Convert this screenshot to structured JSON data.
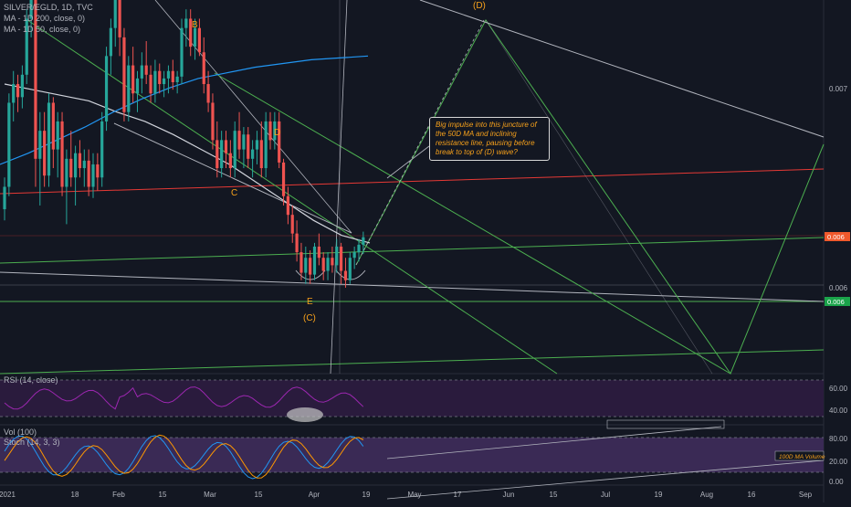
{
  "header": {
    "symbol_line": "SILVER/EGLD, 1D, TVC",
    "ma1": "MA - 1D 200, close, 0)",
    "ma2": "MA - 1D 50, close, 0)"
  },
  "price_panel": {
    "labels": {
      "B": "B",
      "C": "C",
      "D": "D",
      "E": "E",
      "C_paren": "(C)",
      "D_paren": "(D)"
    },
    "annotation": "Big impulse into this juncture of the 50D MA and inclining resistance line, pausing before break to top of (D) wave?",
    "axis_labels": [
      "0.007",
      "0.006"
    ],
    "price_tags": [
      {
        "text": "0.006",
        "color": "#f0592c"
      },
      {
        "text": "0.006",
        "color": "#1aa34a"
      }
    ]
  },
  "rsi_panel": {
    "label": "RSI (14, close)",
    "axis": [
      "60.00",
      "40.00"
    ]
  },
  "stoch_panel": {
    "label_vol": "Vol (100)",
    "label_stoch": "Stoch (14, 3, 3)",
    "axis": [
      "80.00",
      "20.00",
      "0.00"
    ],
    "tag": "100D MA Volume"
  },
  "x_axis": {
    "ticks": [
      "2021",
      "18",
      "Feb",
      "15",
      "Mar",
      "15",
      "Apr",
      "19",
      "May",
      "17",
      "Jun",
      "15",
      "Jul",
      "19",
      "Aug",
      "16",
      "Sep"
    ]
  },
  "colors": {
    "background": "#131722",
    "bull": "#26a69a",
    "bear": "#ef5350",
    "ma200": "#2196f3",
    "ma50": "#ffffff",
    "trend_green": "#4caf50",
    "trend_red": "#e53935",
    "label_orange": "#f7a11b",
    "rsi": "#9c27b0",
    "stoch_k": "#2196f3",
    "stoch_d": "#ff9800",
    "band_fill": "#2a1b3d"
  },
  "chart_data": {
    "type": "candlestick",
    "title": "SILVER/EGLD, 1D, TVC",
    "x_range": [
      "2021-01-04",
      "2021-09-06"
    ],
    "y_range": [
      0.0055,
      0.0075
    ],
    "candles": [
      {
        "o": 0.00638,
        "h": 0.00655,
        "l": 0.00632,
        "c": 0.0065
      },
      {
        "o": 0.0065,
        "h": 0.007,
        "l": 0.00645,
        "c": 0.00695
      },
      {
        "o": 0.00695,
        "h": 0.00712,
        "l": 0.00685,
        "c": 0.00705
      },
      {
        "o": 0.00705,
        "h": 0.0071,
        "l": 0.0069,
        "c": 0.00698
      },
      {
        "o": 0.00698,
        "h": 0.00715,
        "l": 0.00692,
        "c": 0.0071
      },
      {
        "o": 0.0071,
        "h": 0.00745,
        "l": 0.00705,
        "c": 0.0074
      },
      {
        "o": 0.0074,
        "h": 0.0078,
        "l": 0.0073,
        "c": 0.0077
      },
      {
        "o": 0.0077,
        "h": 0.0078,
        "l": 0.0065,
        "c": 0.00665
      },
      {
        "o": 0.00665,
        "h": 0.0069,
        "l": 0.0064,
        "c": 0.0068
      },
      {
        "o": 0.0068,
        "h": 0.0069,
        "l": 0.0065,
        "c": 0.00656
      },
      {
        "o": 0.00656,
        "h": 0.007,
        "l": 0.0065,
        "c": 0.00695
      },
      {
        "o": 0.00695,
        "h": 0.00698,
        "l": 0.0066,
        "c": 0.0067
      },
      {
        "o": 0.0067,
        "h": 0.0069,
        "l": 0.00655,
        "c": 0.00685
      },
      {
        "o": 0.00685,
        "h": 0.0069,
        "l": 0.00645,
        "c": 0.0065
      },
      {
        "o": 0.0065,
        "h": 0.0067,
        "l": 0.0063,
        "c": 0.00665
      },
      {
        "o": 0.00665,
        "h": 0.0068,
        "l": 0.0065,
        "c": 0.00655
      },
      {
        "o": 0.00655,
        "h": 0.00672,
        "l": 0.0064,
        "c": 0.00668
      },
      {
        "o": 0.00668,
        "h": 0.00675,
        "l": 0.00655,
        "c": 0.0066
      },
      {
        "o": 0.0066,
        "h": 0.0067,
        "l": 0.0065,
        "c": 0.00664
      },
      {
        "o": 0.00664,
        "h": 0.0067,
        "l": 0.00645,
        "c": 0.0065
      },
      {
        "o": 0.0065,
        "h": 0.00668,
        "l": 0.00644,
        "c": 0.00662
      },
      {
        "o": 0.00662,
        "h": 0.00668,
        "l": 0.00648,
        "c": 0.00655
      },
      {
        "o": 0.00655,
        "h": 0.0069,
        "l": 0.0065,
        "c": 0.00685
      },
      {
        "o": 0.00685,
        "h": 0.00725,
        "l": 0.0068,
        "c": 0.0072
      },
      {
        "o": 0.0072,
        "h": 0.0074,
        "l": 0.0071,
        "c": 0.00735
      },
      {
        "o": 0.00735,
        "h": 0.00765,
        "l": 0.00725,
        "c": 0.0076
      },
      {
        "o": 0.0076,
        "h": 0.00775,
        "l": 0.0072,
        "c": 0.0073
      },
      {
        "o": 0.0073,
        "h": 0.00735,
        "l": 0.00685,
        "c": 0.0069
      },
      {
        "o": 0.0069,
        "h": 0.0072,
        "l": 0.00685,
        "c": 0.00715
      },
      {
        "o": 0.00715,
        "h": 0.00725,
        "l": 0.00695,
        "c": 0.007
      },
      {
        "o": 0.007,
        "h": 0.00712,
        "l": 0.0069,
        "c": 0.00708
      },
      {
        "o": 0.00708,
        "h": 0.00722,
        "l": 0.007,
        "c": 0.00715
      },
      {
        "o": 0.00715,
        "h": 0.00728,
        "l": 0.00705,
        "c": 0.0071
      },
      {
        "o": 0.0071,
        "h": 0.00715,
        "l": 0.00695,
        "c": 0.007
      },
      {
        "o": 0.007,
        "h": 0.00718,
        "l": 0.00695,
        "c": 0.00712
      },
      {
        "o": 0.00712,
        "h": 0.00716,
        "l": 0.007,
        "c": 0.00705
      },
      {
        "o": 0.00705,
        "h": 0.00712,
        "l": 0.00698,
        "c": 0.00708
      },
      {
        "o": 0.00708,
        "h": 0.00715,
        "l": 0.007,
        "c": 0.00712
      },
      {
        "o": 0.00712,
        "h": 0.00718,
        "l": 0.00702,
        "c": 0.00706
      },
      {
        "o": 0.00706,
        "h": 0.00712,
        "l": 0.007,
        "c": 0.00709
      },
      {
        "o": 0.00709,
        "h": 0.0074,
        "l": 0.00705,
        "c": 0.00735
      },
      {
        "o": 0.00735,
        "h": 0.00745,
        "l": 0.00725,
        "c": 0.0074
      },
      {
        "o": 0.0074,
        "h": 0.00745,
        "l": 0.0072,
        "c": 0.00725
      },
      {
        "o": 0.00725,
        "h": 0.0074,
        "l": 0.00718,
        "c": 0.00735
      },
      {
        "o": 0.00735,
        "h": 0.0074,
        "l": 0.0072,
        "c": 0.00722
      },
      {
        "o": 0.00722,
        "h": 0.0073,
        "l": 0.007,
        "c": 0.00705
      },
      {
        "o": 0.00705,
        "h": 0.00712,
        "l": 0.0069,
        "c": 0.00695
      },
      {
        "o": 0.00695,
        "h": 0.007,
        "l": 0.0067,
        "c": 0.00675
      },
      {
        "o": 0.00675,
        "h": 0.00685,
        "l": 0.00655,
        "c": 0.0066
      },
      {
        "o": 0.0066,
        "h": 0.0068,
        "l": 0.00655,
        "c": 0.00675
      },
      {
        "o": 0.00675,
        "h": 0.0068,
        "l": 0.0066,
        "c": 0.00668
      },
      {
        "o": 0.00668,
        "h": 0.00675,
        "l": 0.00655,
        "c": 0.0066
      },
      {
        "o": 0.0066,
        "h": 0.00685,
        "l": 0.00655,
        "c": 0.0068
      },
      {
        "o": 0.0068,
        "h": 0.0069,
        "l": 0.00665,
        "c": 0.0067
      },
      {
        "o": 0.0067,
        "h": 0.00682,
        "l": 0.0066,
        "c": 0.00678
      },
      {
        "o": 0.00678,
        "h": 0.00682,
        "l": 0.0066,
        "c": 0.00665
      },
      {
        "o": 0.00665,
        "h": 0.00675,
        "l": 0.00655,
        "c": 0.0067
      },
      {
        "o": 0.0067,
        "h": 0.0068,
        "l": 0.00662,
        "c": 0.00675
      },
      {
        "o": 0.00675,
        "h": 0.00685,
        "l": 0.00655,
        "c": 0.0066
      },
      {
        "o": 0.0066,
        "h": 0.0069,
        "l": 0.00655,
        "c": 0.00685
      },
      {
        "o": 0.00685,
        "h": 0.0069,
        "l": 0.0067,
        "c": 0.00675
      },
      {
        "o": 0.00675,
        "h": 0.0069,
        "l": 0.0067,
        "c": 0.00685
      },
      {
        "o": 0.00685,
        "h": 0.0069,
        "l": 0.0066,
        "c": 0.00663
      },
      {
        "o": 0.00663,
        "h": 0.00665,
        "l": 0.0064,
        "c": 0.00645
      },
      {
        "o": 0.00645,
        "h": 0.0065,
        "l": 0.0063,
        "c": 0.00635
      },
      {
        "o": 0.00635,
        "h": 0.0064,
        "l": 0.0062,
        "c": 0.00625
      },
      {
        "o": 0.00625,
        "h": 0.00632,
        "l": 0.0061,
        "c": 0.00615
      },
      {
        "o": 0.00615,
        "h": 0.0062,
        "l": 0.006,
        "c": 0.00604
      },
      {
        "o": 0.00604,
        "h": 0.00618,
        "l": 0.00598,
        "c": 0.00612
      },
      {
        "o": 0.00612,
        "h": 0.00616,
        "l": 0.00598,
        "c": 0.00603
      },
      {
        "o": 0.00603,
        "h": 0.0062,
        "l": 0.006,
        "c": 0.00618
      },
      {
        "o": 0.00618,
        "h": 0.00625,
        "l": 0.00608,
        "c": 0.00612
      },
      {
        "o": 0.00612,
        "h": 0.00615,
        "l": 0.006,
        "c": 0.00605
      },
      {
        "o": 0.00605,
        "h": 0.00615,
        "l": 0.006,
        "c": 0.00612
      },
      {
        "o": 0.00612,
        "h": 0.00618,
        "l": 0.00604,
        "c": 0.00608
      },
      {
        "o": 0.00608,
        "h": 0.00622,
        "l": 0.00604,
        "c": 0.00618
      },
      {
        "o": 0.00618,
        "h": 0.0062,
        "l": 0.00598,
        "c": 0.00605
      },
      {
        "o": 0.00605,
        "h": 0.00612,
        "l": 0.00596,
        "c": 0.006
      },
      {
        "o": 0.006,
        "h": 0.00615,
        "l": 0.00598,
        "c": 0.00612
      },
      {
        "o": 0.00612,
        "h": 0.00618,
        "l": 0.00606,
        "c": 0.00615
      },
      {
        "o": 0.00615,
        "h": 0.00622,
        "l": 0.0061,
        "c": 0.00619
      },
      {
        "o": 0.00619,
        "h": 0.00626,
        "l": 0.00614,
        "c": 0.00623
      }
    ],
    "ma50": [
      0.00705,
      0.00702,
      0.00699,
      0.00696,
      0.0069,
      0.00685,
      0.00678,
      0.0067,
      0.00662,
      0.00652,
      0.00642,
      0.00632,
      0.00624,
      0.0062
    ],
    "ma200": [
      0.00662,
      0.00668,
      0.00675,
      0.00682,
      0.0069,
      0.00697,
      0.00703,
      0.00708,
      0.00711,
      0.00714,
      0.00716,
      0.00718,
      0.00719,
      0.0072
    ],
    "last_price": 0.00623
  }
}
